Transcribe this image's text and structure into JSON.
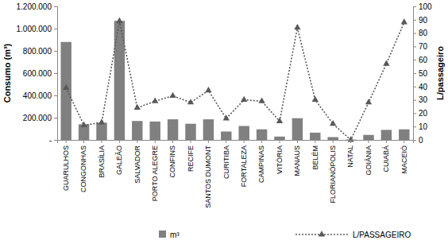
{
  "chart_data": {
    "type": "bar",
    "categories": [
      "GUARULHOS",
      "CONGONHAS",
      "BRASÍLIA",
      "GALEÃO",
      "SALVADOR",
      "PORTO ALEGRE",
      "CONFINS",
      "RECIFE",
      "SANTOS DUMONT",
      "CURITIBA",
      "FORTALEZA",
      "CAMPINAS",
      "VITÓRIA",
      "MANAUS",
      "BELÉM",
      "FLORIANÓPOLIS",
      "NATAL",
      "GOIÂNIA",
      "CUIABÁ",
      "MACEIÓ"
    ],
    "series": [
      {
        "name": "m³",
        "type": "bar",
        "color": "#808080",
        "values": [
          880000,
          140000,
          155000,
          1070000,
          170000,
          165000,
          185000,
          145000,
          185000,
          75000,
          125000,
          95000,
          30000,
          195000,
          65000,
          25000,
          3000,
          45000,
          90000,
          95000
        ]
      },
      {
        "name": "L/PASSAGEIRO",
        "type": "line",
        "axis": "y2",
        "color": "#595959",
        "marker": "triangle",
        "line_style": "dotted",
        "values": [
          39,
          11,
          13,
          89,
          24,
          29,
          33,
          28,
          37,
          16,
          30,
          29,
          14,
          84,
          30,
          12,
          0,
          28,
          57,
          88
        ]
      }
    ],
    "y_label": "Consumo (m³)",
    "y2_label": "L/passageiro",
    "ylim": [
      0,
      1200000
    ],
    "yticks": [
      {
        "value": 0,
        "label": "-"
      },
      {
        "value": 200000,
        "label": "200.000"
      },
      {
        "value": 400000,
        "label": "400.000"
      },
      {
        "value": 600000,
        "label": "600.000"
      },
      {
        "value": 800000,
        "label": "800.000"
      },
      {
        "value": 1000000,
        "label": "1.000.000"
      },
      {
        "value": 1200000,
        "label": "1.200.000"
      }
    ],
    "y2lim": [
      0,
      100
    ],
    "y2ticks": [
      0,
      10,
      20,
      30,
      40,
      50,
      60,
      70,
      80,
      90,
      100
    ],
    "grid": false,
    "legend": "bottom"
  }
}
